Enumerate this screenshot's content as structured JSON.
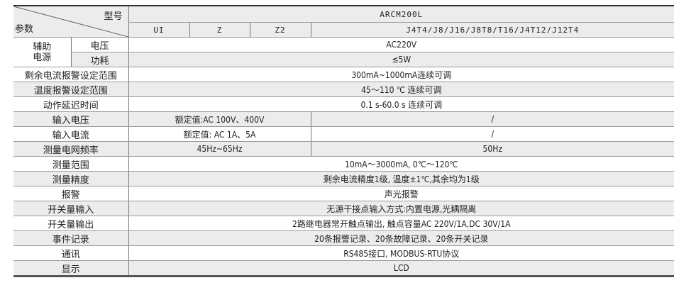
{
  "header": {
    "model_label": "型号",
    "param_label": "参数",
    "series": "ARCM200L",
    "models": [
      "UI",
      "Z",
      "Z2",
      "J4T4/J8/J16/J8T8/T16/J4T12/J12T4"
    ]
  },
  "aux_power": {
    "label": "辅助电源",
    "voltage_label": "电压",
    "voltage": "AC220V",
    "power_label": "功耗",
    "power": "≤5W"
  },
  "rows": [
    {
      "label": "剩余电流报警设定范围",
      "value": "300mA~1000mA连续可调"
    },
    {
      "label": "温度报警设定范围",
      "value": "45～110 ℃ 连续可调"
    },
    {
      "label": "动作延迟时间",
      "value": "0.1 s-60.0 s 连续可调"
    },
    {
      "label": "输入电压",
      "value_a": "额定值:AC 100V、400V",
      "value_b": "/"
    },
    {
      "label": "输入电流",
      "value_a": "额定值: AC 1A、5A",
      "value_b": "/"
    },
    {
      "label": "测量电网频率",
      "value_a": "45Hz~65Hz",
      "value_b": "50Hz"
    },
    {
      "label": "测量范围",
      "value": "10mA～3000mA, 0℃～120℃"
    },
    {
      "label": "测量精度",
      "value": "剩余电流精度1级, 温度±1℃,其余均为1级"
    },
    {
      "label": "报警",
      "value": "声光报警"
    },
    {
      "label": "开关量输入",
      "value": "无源干接点输入方式:内置电源,光耦隔离"
    },
    {
      "label": "开关量输出",
      "value": "2路继电器常开触点输出, 触点容量AC 220V/1A,DC 30V/1A"
    },
    {
      "label": "事件记录",
      "value": "20条报警记录、20条故障记录、20条开关记录"
    },
    {
      "label": "通讯",
      "value": "RS485接口, MODBUS-RTU协议"
    },
    {
      "label": "显示",
      "value": "LCD"
    }
  ]
}
